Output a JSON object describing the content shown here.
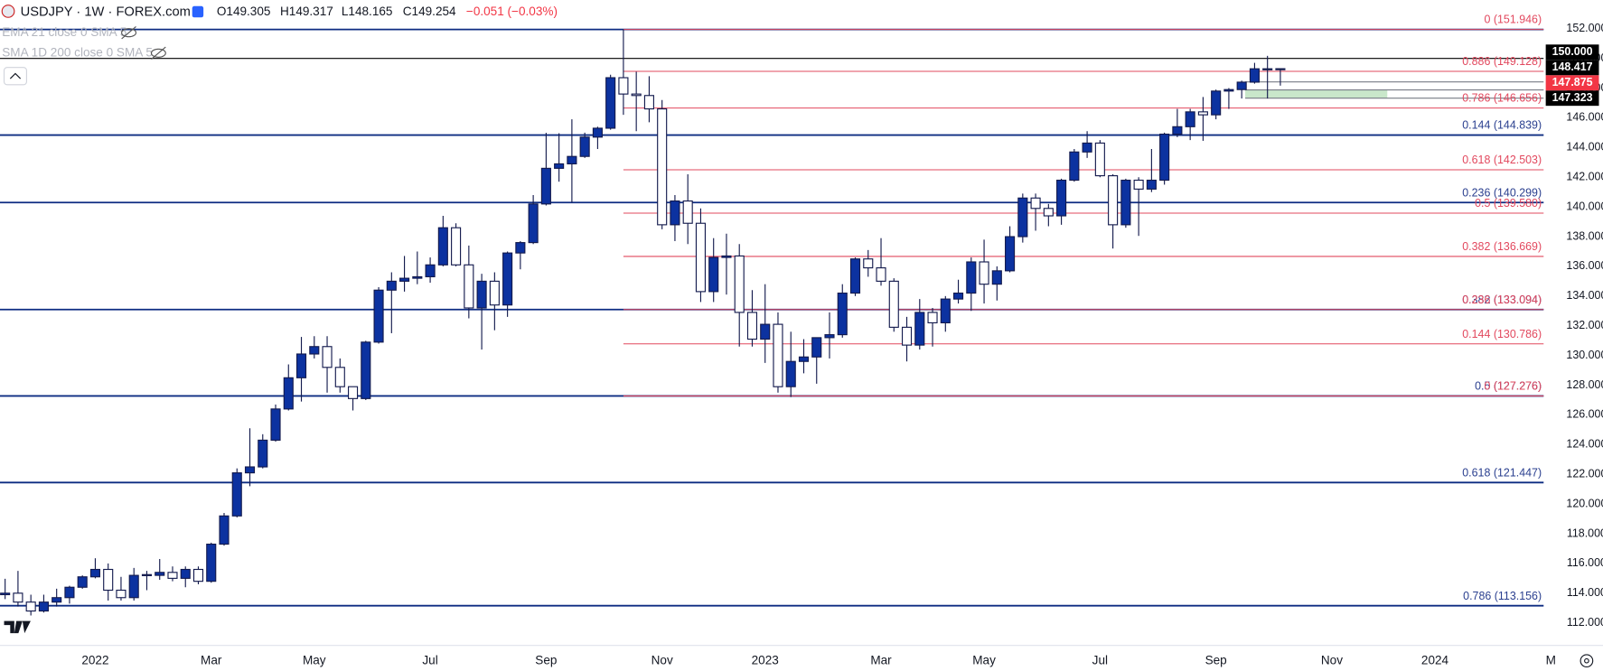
{
  "chart_data": {
    "type": "candlestick",
    "header": {
      "symbol": "USDJPY · 1W · FOREX.com",
      "open": "O149.305",
      "high": "H149.317",
      "low": "L148.165",
      "close": "C149.254",
      "change": "−0.051 (−0.03%)"
    },
    "indicators": [
      "EMA 21 close 0 SMA 5",
      "SMA 1D 200 close 0 SMA 5"
    ],
    "categories": [
      null,
      null,
      null,
      null,
      null,
      null,
      null,
      "2022",
      null,
      null,
      null,
      null,
      null,
      null,
      null,
      null,
      "Mar",
      null,
      null,
      null,
      null,
      null,
      null,
      null,
      "May",
      null,
      null,
      null,
      null,
      null,
      null,
      null,
      null,
      "Jul",
      null,
      null,
      null,
      null,
      null,
      null,
      null,
      null,
      "Sep",
      null,
      null,
      null,
      null,
      null,
      null,
      null,
      null,
      "Nov",
      null,
      null,
      null,
      null,
      null,
      null,
      null,
      "2023",
      null,
      null,
      null,
      null,
      null,
      null,
      null,
      null,
      "Mar",
      null,
      null,
      null,
      null,
      null,
      null,
      null,
      "May",
      null,
      null,
      null,
      null,
      null,
      null,
      null,
      null,
      "Jul",
      null,
      null,
      null,
      null,
      null,
      null,
      null,
      null,
      "Sep",
      null,
      null,
      null,
      null,
      null,
      null,
      null,
      null,
      "Nov",
      null,
      null,
      null,
      null,
      null,
      null,
      null,
      "2024",
      null,
      null,
      null,
      null,
      null,
      null,
      null,
      null,
      "M"
    ],
    "open": [
      113.9,
      114.0,
      113.4,
      112.8,
      113.4,
      113.7,
      114.4,
      115.1,
      115.6,
      114.2,
      113.7,
      115.2,
      115.2,
      115.4,
      115.0,
      115.6,
      114.8,
      117.3,
      119.2,
      122.1,
      122.5,
      124.3,
      126.4,
      128.5,
      130.1,
      130.6,
      129.2,
      127.9,
      127.1,
      130.9,
      134.4,
      135.0,
      135.2,
      135.3,
      136.1,
      138.6,
      136.1,
      133.2,
      135.0,
      133.4,
      136.9,
      137.6,
      140.2,
      142.6,
      142.9,
      143.4,
      144.7,
      145.3,
      148.7,
      147.6,
      147.5,
      146.6,
      138.8,
      140.4,
      138.9,
      134.3,
      136.6,
      136.7,
      132.9,
      131.1,
      132.1,
      127.9,
      129.6,
      129.9,
      131.2,
      131.4,
      134.2,
      136.5,
      135.9,
      135.0,
      131.9,
      130.7,
      132.9,
      132.2,
      133.8,
      134.2,
      136.3,
      134.8,
      135.7,
      138.0,
      140.6,
      139.9,
      139.4,
      141.8,
      143.7,
      144.3,
      142.1,
      138.8,
      141.8,
      141.2,
      141.8,
      144.9,
      145.4,
      146.4,
      146.2,
      147.8,
      147.9,
      148.4,
      149.3,
      149.305,
      null,
      null,
      null,
      null,
      null,
      null,
      null,
      null,
      null,
      null,
      null,
      null,
      null,
      null,
      null,
      null,
      null,
      null,
      null,
      null,
      null
    ],
    "high": [
      114.97,
      115.5,
      113.9,
      113.9,
      114.3,
      114.5,
      115.2,
      116.35,
      116.0,
      115.1,
      115.7,
      115.5,
      116.3,
      115.8,
      115.8,
      115.8,
      117.4,
      119.4,
      122.4,
      125.1,
      124.7,
      126.7,
      129.4,
      131.25,
      131.3,
      131.3,
      129.8,
      127.9,
      130.99,
      134.6,
      135.6,
      136.7,
      137.0,
      136.6,
      139.4,
      138.9,
      137.4,
      135.5,
      135.6,
      137.0,
      137.7,
      140.8,
      144.99,
      144.96,
      145.9,
      145.0,
      145.4,
      148.9,
      151.95,
      149.1,
      148.8,
      147.2,
      140.8,
      142.2,
      139.9,
      137.9,
      138.2,
      137.5,
      134.4,
      134.8,
      132.9,
      131.6,
      131.1,
      131.2,
      132.9,
      134.8,
      136.6,
      137.1,
      137.9,
      135.2,
      132.6,
      133.8,
      133.2,
      134.0,
      135.1,
      136.6,
      137.8,
      136.0,
      138.7,
      140.9,
      140.9,
      140.2,
      141.9,
      143.9,
      145.1,
      144.5,
      142.2,
      141.9,
      142.0,
      143.9,
      145.0,
      146.6,
      146.6,
      147.4,
      147.9,
      148.0,
      148.5,
      149.7,
      150.17,
      149.317,
      null,
      null,
      null,
      null,
      null,
      null,
      null,
      null,
      null,
      null,
      null,
      null,
      null,
      null,
      null,
      null,
      null,
      null,
      null,
      null,
      null
    ],
    "low": [
      113.6,
      113.1,
      112.5,
      112.7,
      113.1,
      113.3,
      114.3,
      115.0,
      113.5,
      113.5,
      113.5,
      114.2,
      114.9,
      114.8,
      114.4,
      114.6,
      114.7,
      117.2,
      119.1,
      121.2,
      122.4,
      124.2,
      126.3,
      126.9,
      129.8,
      127.5,
      127.5,
      126.3,
      127.0,
      130.8,
      131.5,
      134.3,
      134.8,
      134.9,
      136.0,
      136.0,
      132.5,
      130.4,
      131.7,
      132.6,
      135.8,
      137.5,
      140.1,
      141.7,
      140.3,
      143.3,
      143.9,
      145.2,
      146.2,
      145.1,
      145.7,
      138.5,
      137.7,
      137.5,
      133.6,
      133.6,
      134.1,
      130.6,
      130.6,
      129.5,
      127.5,
      127.2,
      128.8,
      128.1,
      129.8,
      131.2,
      134.0,
      135.3,
      134.7,
      131.6,
      129.6,
      130.4,
      130.6,
      131.6,
      133.5,
      133.0,
      133.5,
      133.7,
      135.6,
      137.6,
      138.4,
      138.7,
      138.8,
      141.7,
      143.3,
      142.0,
      137.2,
      138.6,
      138.05,
      141.0,
      141.5,
      144.7,
      144.5,
      144.45,
      145.9,
      146.6,
      147.3,
      148.3,
      147.3,
      148.165,
      null,
      null,
      null,
      null,
      null,
      null,
      null,
      null,
      null,
      null,
      null,
      null,
      null,
      null,
      null,
      null,
      null,
      null,
      null,
      null,
      null
    ],
    "close": [
      114.0,
      113.4,
      112.8,
      113.4,
      113.7,
      114.4,
      115.1,
      115.6,
      114.2,
      113.7,
      115.2,
      115.25,
      115.4,
      115.0,
      115.6,
      114.8,
      117.3,
      119.2,
      122.1,
      122.5,
      124.3,
      126.4,
      128.5,
      130.1,
      130.6,
      129.2,
      127.9,
      127.1,
      130.9,
      134.4,
      135.0,
      135.2,
      135.3,
      136.1,
      138.6,
      136.1,
      133.2,
      135.0,
      133.4,
      136.9,
      137.6,
      140.2,
      142.6,
      142.9,
      143.4,
      144.7,
      145.3,
      148.7,
      147.6,
      147.5,
      146.6,
      138.8,
      140.4,
      138.9,
      134.3,
      136.6,
      136.7,
      132.9,
      131.1,
      132.1,
      127.9,
      129.6,
      129.9,
      131.2,
      131.4,
      134.2,
      136.5,
      135.9,
      135.0,
      131.9,
      130.7,
      132.9,
      132.2,
      133.8,
      134.2,
      136.3,
      134.8,
      135.7,
      138.0,
      140.6,
      139.9,
      139.4,
      141.8,
      143.7,
      144.3,
      142.1,
      138.8,
      141.8,
      141.2,
      141.8,
      144.9,
      145.4,
      146.4,
      146.2,
      147.8,
      147.9,
      148.4,
      149.3,
      149.29,
      149.254,
      null,
      null,
      null,
      null,
      null,
      null,
      null,
      null,
      null,
      null,
      null,
      null,
      null,
      null,
      null,
      null,
      null,
      null,
      null,
      null,
      null
    ],
    "up_color": "#0c32a0",
    "down_color": "#ffffff",
    "outline_color": "#131a4d",
    "ylim": [
      110.48,
      153.93
    ],
    "yticks": [
      {
        "value": 112,
        "label": "112.000"
      },
      {
        "value": 114,
        "label": "114.000"
      },
      {
        "value": 116,
        "label": "116.000"
      },
      {
        "value": 118,
        "label": "118.000"
      },
      {
        "value": 120,
        "label": "120.000"
      },
      {
        "value": 122,
        "label": "122.000"
      },
      {
        "value": 124,
        "label": "124.000"
      },
      {
        "value": 126,
        "label": "126.000"
      },
      {
        "value": 128,
        "label": "128.000"
      },
      {
        "value": 130,
        "label": "130.000"
      },
      {
        "value": 132,
        "label": "132.000"
      },
      {
        "value": 134,
        "label": "134.000"
      },
      {
        "value": 136,
        "label": "136.000"
      },
      {
        "value": 138,
        "label": "138.000"
      },
      {
        "value": 140,
        "label": "140.000"
      },
      {
        "value": 142,
        "label": "142.000"
      },
      {
        "value": 144,
        "label": "144.000"
      },
      {
        "value": 146,
        "label": "146.000"
      },
      {
        "value": 148,
        "label": "148.000"
      },
      {
        "value": 150,
        "label": "150.000"
      },
      {
        "value": 152,
        "label": "152.000"
      }
    ],
    "levels_long": {
      "color": "#0d2c82",
      "label_color": "#2a3f8f",
      "items": [
        {
          "value": 151.946
        },
        {
          "value": 144.839,
          "label": "0.144 (144.839)"
        },
        {
          "value": 140.299,
          "label": "0.236 (140.299)"
        },
        {
          "value": 133.094,
          "label": "0.382 (133.094)"
        },
        {
          "value": 127.276,
          "label": "0.5 (127.276)"
        },
        {
          "value": 121.447,
          "label": "0.618 (121.447)"
        },
        {
          "value": 113.156,
          "label": "0.786 (113.156)"
        }
      ]
    },
    "levels_retrace": {
      "color": "#e2485e",
      "label_color": "#e2485e",
      "items": [
        {
          "value": 151.946,
          "label": "0 (151.946)"
        },
        {
          "value": 149.128,
          "label": "0.886 (149.128)"
        },
        {
          "value": 146.656,
          "label": "0.786 (146.656)"
        },
        {
          "value": 142.503,
          "label": "0.618 (142.503)"
        },
        {
          "value": 139.58,
          "label": "0.5 (139.580)"
        },
        {
          "value": 136.669,
          "label": "0.382 (136.669)"
        },
        {
          "value": 133.094,
          "label": "0.236 (133.094)"
        },
        {
          "value": 130.786,
          "label": "0.144 (130.786)"
        },
        {
          "value": 127.276,
          "label": "0 (127.276)"
        }
      ]
    },
    "price_tags": [
      {
        "value": 150,
        "label": "150.000",
        "color": "#000000"
      },
      {
        "value": 148.417,
        "label": "148.417",
        "color": "#000000"
      },
      {
        "value": 147.875,
        "label": "147.875",
        "color": "#f23645"
      },
      {
        "value": 147.323,
        "label": "147.323",
        "color": "#000000"
      }
    ]
  }
}
